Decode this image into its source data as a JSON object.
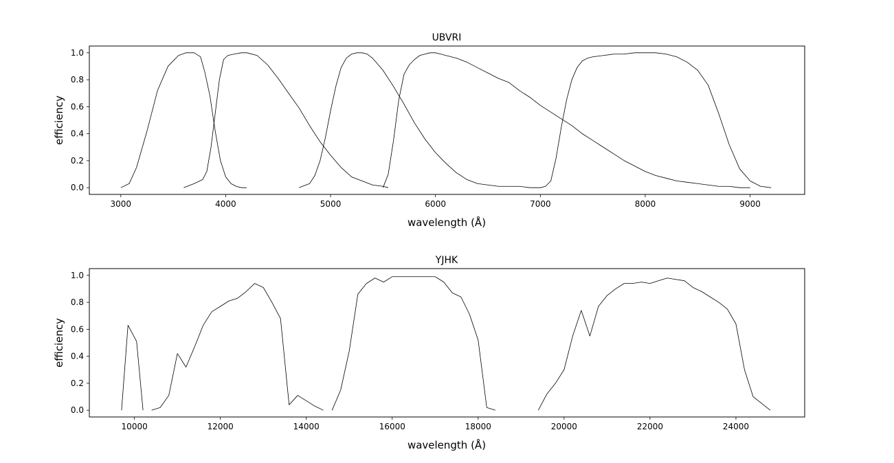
{
  "chart_data": [
    {
      "type": "line",
      "title": "UBVRI",
      "xlabel": "wavelength (Å)",
      "ylabel": "efficiency",
      "xlim": [
        2700,
        9520
      ],
      "ylim": [
        -0.05,
        1.05
      ],
      "grid": false,
      "xticks": [
        3000,
        4000,
        5000,
        6000,
        7000,
        8000,
        9000
      ],
      "yticks": [
        0.0,
        0.2,
        0.4,
        0.6,
        0.8,
        1.0
      ],
      "ytick_labels": [
        "0.0",
        "0.2",
        "0.4",
        "0.6",
        "0.8",
        "1.0"
      ],
      "line_color": "#000000",
      "series": [
        {
          "x": [
            3000,
            3080,
            3150,
            3250,
            3350,
            3450,
            3550,
            3620,
            3700,
            3760,
            3800,
            3850,
            3900,
            3950,
            4000,
            4050,
            4100,
            4150,
            4200
          ],
          "y": [
            0.0,
            0.03,
            0.15,
            0.42,
            0.72,
            0.9,
            0.98,
            1.0,
            1.0,
            0.97,
            0.86,
            0.68,
            0.42,
            0.2,
            0.08,
            0.03,
            0.01,
            0.0,
            0.0
          ]
        },
        {
          "x": [
            3600,
            3700,
            3780,
            3820,
            3860,
            3900,
            3940,
            3980,
            4020,
            4080,
            4150,
            4200,
            4300,
            4400,
            4500,
            4600,
            4700,
            4800,
            4900,
            5000,
            5100,
            5200,
            5300,
            5400,
            5500,
            5550
          ],
          "y": [
            0.0,
            0.03,
            0.06,
            0.12,
            0.3,
            0.55,
            0.8,
            0.95,
            0.98,
            0.99,
            1.0,
            1.0,
            0.98,
            0.91,
            0.81,
            0.7,
            0.59,
            0.46,
            0.34,
            0.24,
            0.15,
            0.08,
            0.05,
            0.02,
            0.01,
            0.0
          ]
        },
        {
          "x": [
            4700,
            4800,
            4850,
            4900,
            4950,
            5000,
            5050,
            5100,
            5150,
            5200,
            5250,
            5300,
            5350,
            5400,
            5500,
            5600,
            5700,
            5800,
            5900,
            6000,
            6100,
            6200,
            6300,
            6400,
            6500,
            6600,
            6700,
            6800,
            6900,
            6950,
            7000
          ],
          "y": [
            0.0,
            0.03,
            0.09,
            0.2,
            0.37,
            0.57,
            0.75,
            0.89,
            0.96,
            0.99,
            1.0,
            1.0,
            0.99,
            0.96,
            0.87,
            0.75,
            0.62,
            0.48,
            0.36,
            0.26,
            0.18,
            0.11,
            0.06,
            0.03,
            0.02,
            0.01,
            0.01,
            0.01,
            0.0,
            0.0,
            0.0
          ]
        },
        {
          "x": [
            5500,
            5550,
            5600,
            5650,
            5700,
            5750,
            5800,
            5850,
            5900,
            5950,
            6000,
            6050,
            6100,
            6200,
            6300,
            6400,
            6500,
            6600,
            6700,
            6800,
            6900,
            7000,
            7100,
            7200,
            7300,
            7400,
            7500,
            7600,
            7700,
            7800,
            7900,
            8000,
            8100,
            8200,
            8300,
            8400,
            8500,
            8600,
            8700,
            8800,
            8900,
            9000
          ],
          "y": [
            0.0,
            0.1,
            0.35,
            0.65,
            0.84,
            0.91,
            0.95,
            0.98,
            0.99,
            1.0,
            1.0,
            0.99,
            0.98,
            0.96,
            0.93,
            0.89,
            0.85,
            0.81,
            0.78,
            0.72,
            0.67,
            0.61,
            0.56,
            0.51,
            0.46,
            0.4,
            0.35,
            0.3,
            0.25,
            0.2,
            0.16,
            0.12,
            0.09,
            0.07,
            0.05,
            0.04,
            0.03,
            0.02,
            0.01,
            0.01,
            0.0,
            0.0
          ]
        },
        {
          "x": [
            7000,
            7050,
            7100,
            7150,
            7200,
            7250,
            7300,
            7350,
            7400,
            7450,
            7500,
            7600,
            7700,
            7800,
            7900,
            8000,
            8100,
            8200,
            8300,
            8400,
            8500,
            8600,
            8700,
            8800,
            8900,
            9000,
            9100,
            9200
          ],
          "y": [
            0.0,
            0.01,
            0.05,
            0.22,
            0.45,
            0.65,
            0.8,
            0.89,
            0.94,
            0.96,
            0.97,
            0.98,
            0.99,
            0.99,
            1.0,
            1.0,
            1.0,
            0.99,
            0.97,
            0.93,
            0.87,
            0.76,
            0.55,
            0.32,
            0.14,
            0.05,
            0.01,
            0.0
          ]
        }
      ]
    },
    {
      "type": "line",
      "title": "YJHK",
      "xlabel": "wavelength (Å)",
      "ylabel": "efficiency",
      "xlim": [
        8950,
        25600
      ],
      "ylim": [
        -0.05,
        1.05
      ],
      "grid": false,
      "xticks": [
        10000,
        12000,
        14000,
        16000,
        18000,
        20000,
        22000,
        24000
      ],
      "yticks": [
        0.0,
        0.2,
        0.4,
        0.6,
        0.8,
        1.0
      ],
      "ytick_labels": [
        "0.0",
        "0.2",
        "0.4",
        "0.6",
        "0.8",
        "1.0"
      ],
      "line_color": "#000000",
      "series": [
        {
          "x": [
            9700,
            9850,
            10050,
            10200
          ],
          "y": [
            0.0,
            0.63,
            0.51,
            0.0
          ]
        },
        {
          "x": [
            10400,
            10600,
            10800,
            11000,
            11200,
            11400,
            11600,
            11800,
            12000,
            12200,
            12400,
            12600,
            12800,
            13000,
            13200,
            13400,
            13600,
            13800,
            14000,
            14200,
            14400
          ],
          "y": [
            0.0,
            0.02,
            0.11,
            0.42,
            0.32,
            0.47,
            0.63,
            0.73,
            0.77,
            0.81,
            0.83,
            0.88,
            0.94,
            0.91,
            0.8,
            0.68,
            0.04,
            0.11,
            0.07,
            0.03,
            0.0
          ]
        },
        {
          "x": [
            14600,
            14800,
            15000,
            15200,
            15400,
            15600,
            15800,
            16000,
            16200,
            16400,
            16600,
            16800,
            17000,
            17200,
            17400,
            17600,
            17800,
            18000,
            18200,
            18400
          ],
          "y": [
            0.0,
            0.15,
            0.44,
            0.86,
            0.94,
            0.98,
            0.95,
            0.99,
            0.99,
            0.99,
            0.99,
            0.99,
            0.99,
            0.95,
            0.87,
            0.84,
            0.71,
            0.52,
            0.02,
            0.0
          ]
        },
        {
          "x": [
            19400,
            19600,
            19800,
            20000,
            20200,
            20400,
            20600,
            20800,
            21000,
            21200,
            21400,
            21600,
            21800,
            22000,
            22200,
            22400,
            22600,
            22800,
            23000,
            23200,
            23400,
            23600,
            23800,
            24000,
            24200,
            24400,
            24600,
            24800
          ],
          "y": [
            0.0,
            0.12,
            0.2,
            0.3,
            0.55,
            0.74,
            0.55,
            0.77,
            0.85,
            0.9,
            0.94,
            0.94,
            0.95,
            0.94,
            0.96,
            0.98,
            0.97,
            0.96,
            0.91,
            0.88,
            0.84,
            0.8,
            0.75,
            0.64,
            0.3,
            0.1,
            0.05,
            0.0
          ]
        }
      ]
    }
  ]
}
